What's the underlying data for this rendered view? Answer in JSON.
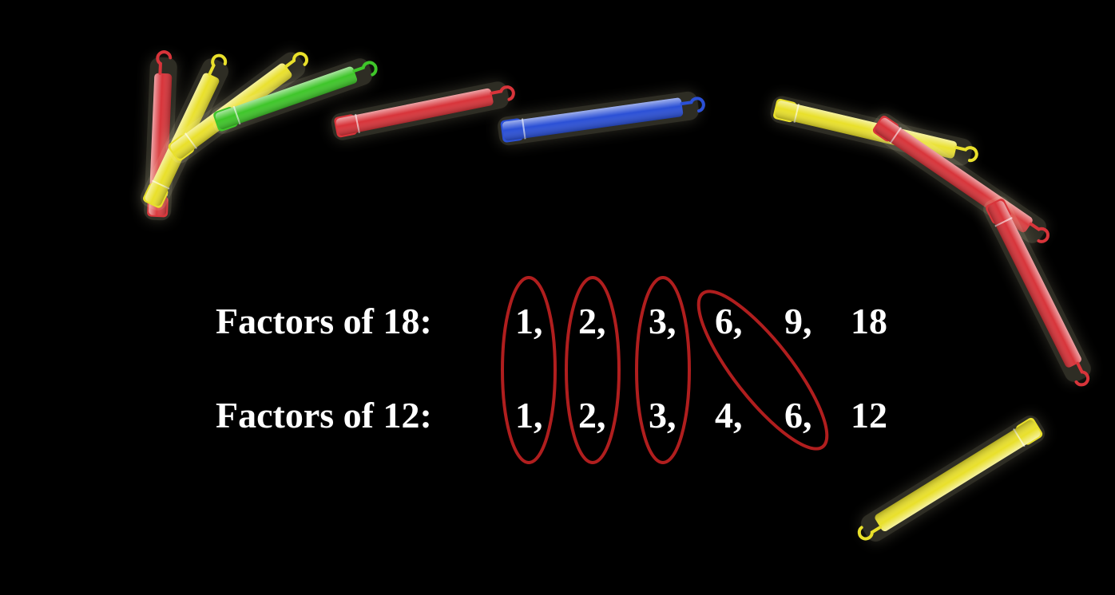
{
  "background_color": "#000000",
  "text_color": "#ffffff",
  "circle_color": "#b01e1e",
  "glow_sticks": [
    {
      "color": "#d8343a"
    },
    {
      "color": "#e9e02b"
    },
    {
      "color": "#e9e02b"
    },
    {
      "color": "#3fc62a"
    },
    {
      "color": "#d8343a"
    },
    {
      "color": "#2b50d6"
    },
    {
      "color": "#e9e02b"
    },
    {
      "color": "#d8343a"
    },
    {
      "color": "#d8343a"
    },
    {
      "color": "#e9e02b"
    }
  ],
  "rows": [
    {
      "label": "Factors of 18:",
      "factors": [
        "1,",
        "2,",
        "3,",
        "6,",
        "9,",
        "18"
      ]
    },
    {
      "label": "Factors of 12:",
      "factors": [
        "1,",
        "2,",
        "3,",
        "4,",
        "6,",
        "12"
      ]
    }
  ],
  "common_factors": [
    "1",
    "2",
    "3",
    "6"
  ]
}
